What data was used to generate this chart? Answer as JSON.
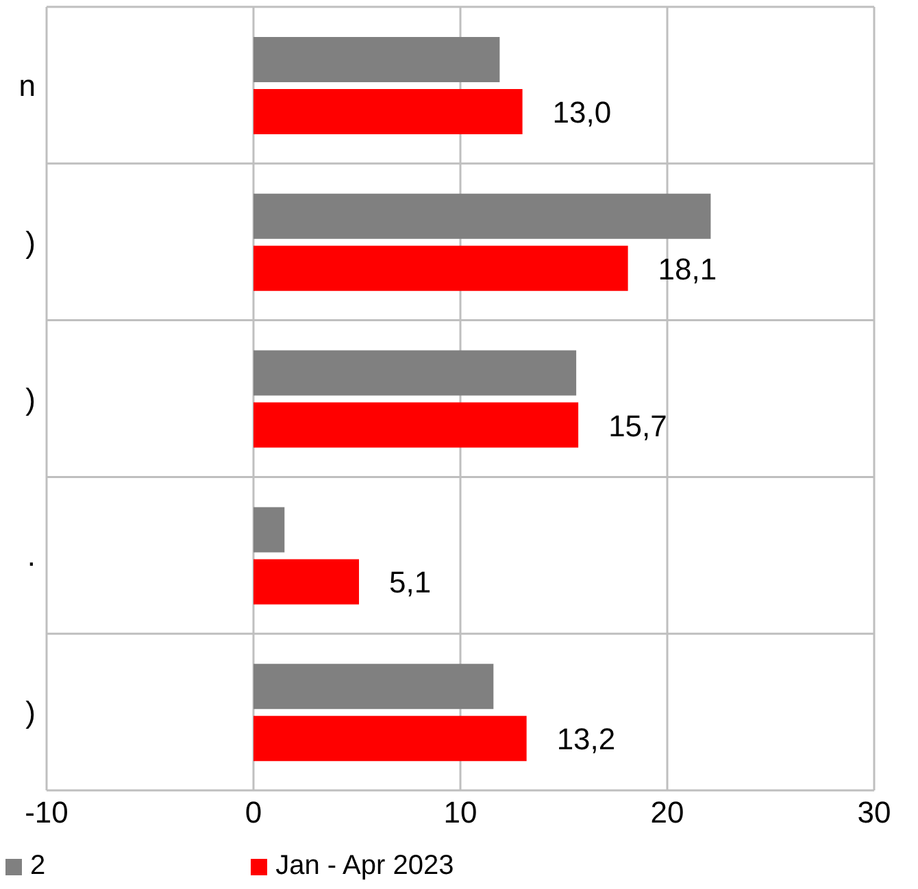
{
  "chart_data": {
    "type": "bar",
    "orientation": "horizontal",
    "categories": [
      "n",
      ")",
      ")",
      ".",
      ")"
    ],
    "series": [
      {
        "name": "2",
        "color": "#808080",
        "values": [
          11.9,
          22.1,
          15.6,
          1.5,
          11.6
        ]
      },
      {
        "name": "Jan - Apr 2023",
        "color": "#ff0000",
        "values": [
          13.0,
          18.1,
          15.7,
          5.1,
          13.2
        ],
        "value_labels": [
          "13,0",
          "18,1",
          "15,7",
          "5,1",
          "13,2"
        ]
      }
    ],
    "xlim": [
      -10,
      30
    ],
    "xticks": [
      -10,
      0,
      10,
      20,
      30
    ],
    "grid": true,
    "legend": "bottom"
  }
}
